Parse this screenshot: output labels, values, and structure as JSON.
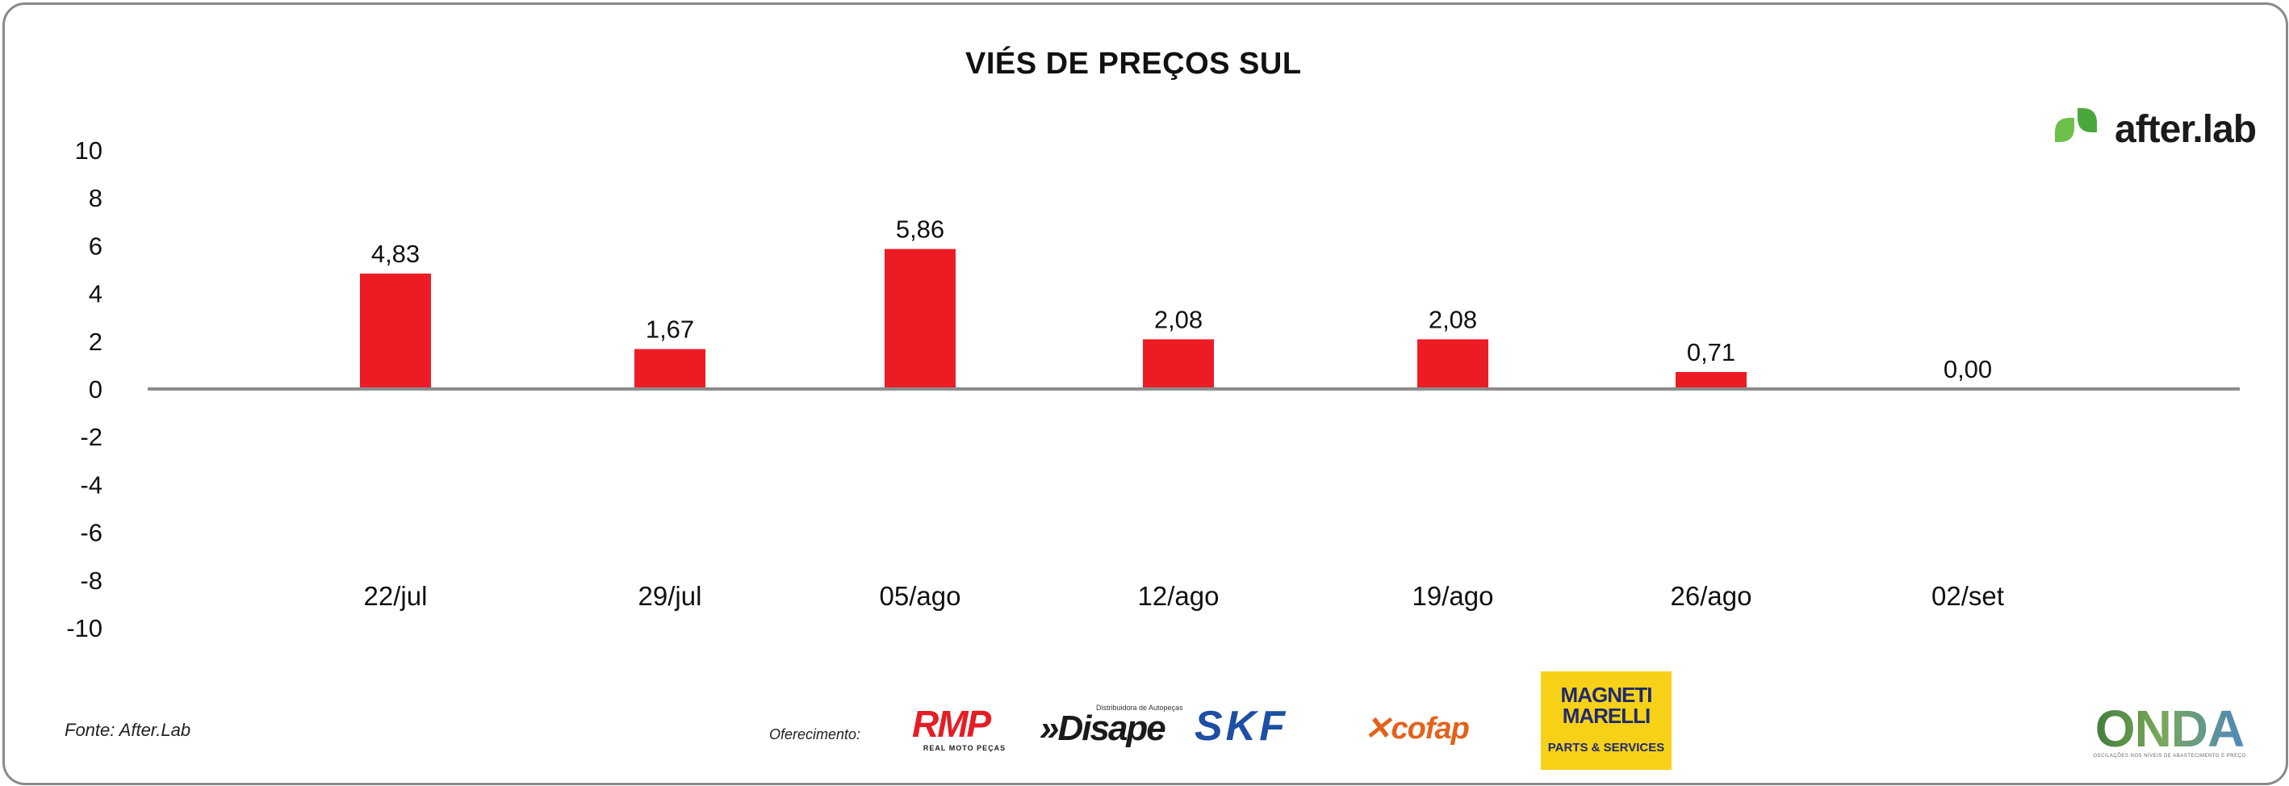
{
  "chart_data": {
    "type": "bar",
    "title": "VIÉS DE PREÇOS SUL",
    "categories": [
      "22/jul",
      "29/jul",
      "05/ago",
      "12/ago",
      "19/ago",
      "26/ago",
      "02/set"
    ],
    "values": [
      4.83,
      1.67,
      5.86,
      2.08,
      2.08,
      0.71,
      0.0
    ],
    "value_labels": [
      "4,83",
      "1,67",
      "5,86",
      "2,08",
      "2,08",
      "0,71",
      "0,00"
    ],
    "ylim": [
      -10,
      10
    ],
    "y_ticks": [
      10,
      8,
      6,
      4,
      2,
      0,
      -2,
      -4,
      -6,
      -8,
      -10
    ],
    "xlabel": "",
    "ylabel": "",
    "grid": false,
    "bar_color": "#ed1c24"
  },
  "brand": {
    "name": "after.lab",
    "icon": "leaf-icon",
    "icon_color": "#6cc04a"
  },
  "footer": {
    "source": "Fonte: After.Lab",
    "sponsor_label": "Oferecimento:",
    "sponsors": {
      "rmp_mark": "RMP",
      "rmp_sub": "REAL MOTO PEÇAS",
      "disape_sub": "Distribuidora de Autopeças",
      "disape_mark": "»Disape",
      "skf_mark": "SKF",
      "cofap_mark": "cofap",
      "magneti_line1": "MAGNETI",
      "magneti_line2": "MARELLI",
      "magneti_sub": "PARTS & SERVICES",
      "onda_mark": "ONDA",
      "onda_sub": "OSCILAÇÕES NOS NÍVEIS DE ABASTECIMENTO E PREÇO"
    }
  }
}
